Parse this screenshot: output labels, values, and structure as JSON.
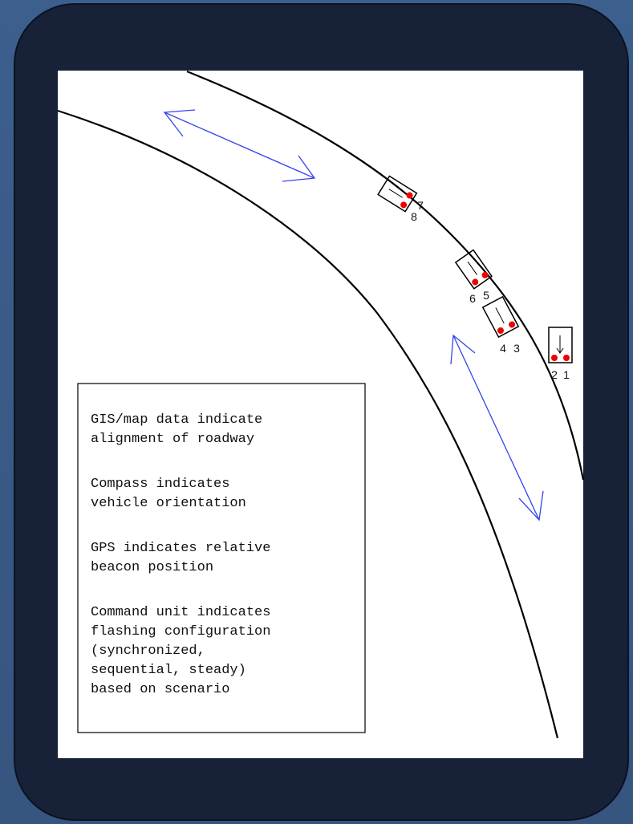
{
  "legend_box": {
    "paragraphs": [
      [
        "GIS/map data indicate",
        "alignment of roadway"
      ],
      [
        "Compass indicates",
        "vehicle orientation"
      ],
      [
        "GPS indicates relative",
        "beacon position"
      ],
      [
        "Command unit indicates",
        "flashing configuration",
        "(synchronized,",
        "sequential, steady)",
        "based on scenario"
      ]
    ]
  },
  "beacon_labels": [
    "1",
    "2",
    "3",
    "4",
    "5",
    "6",
    "7",
    "8"
  ]
}
